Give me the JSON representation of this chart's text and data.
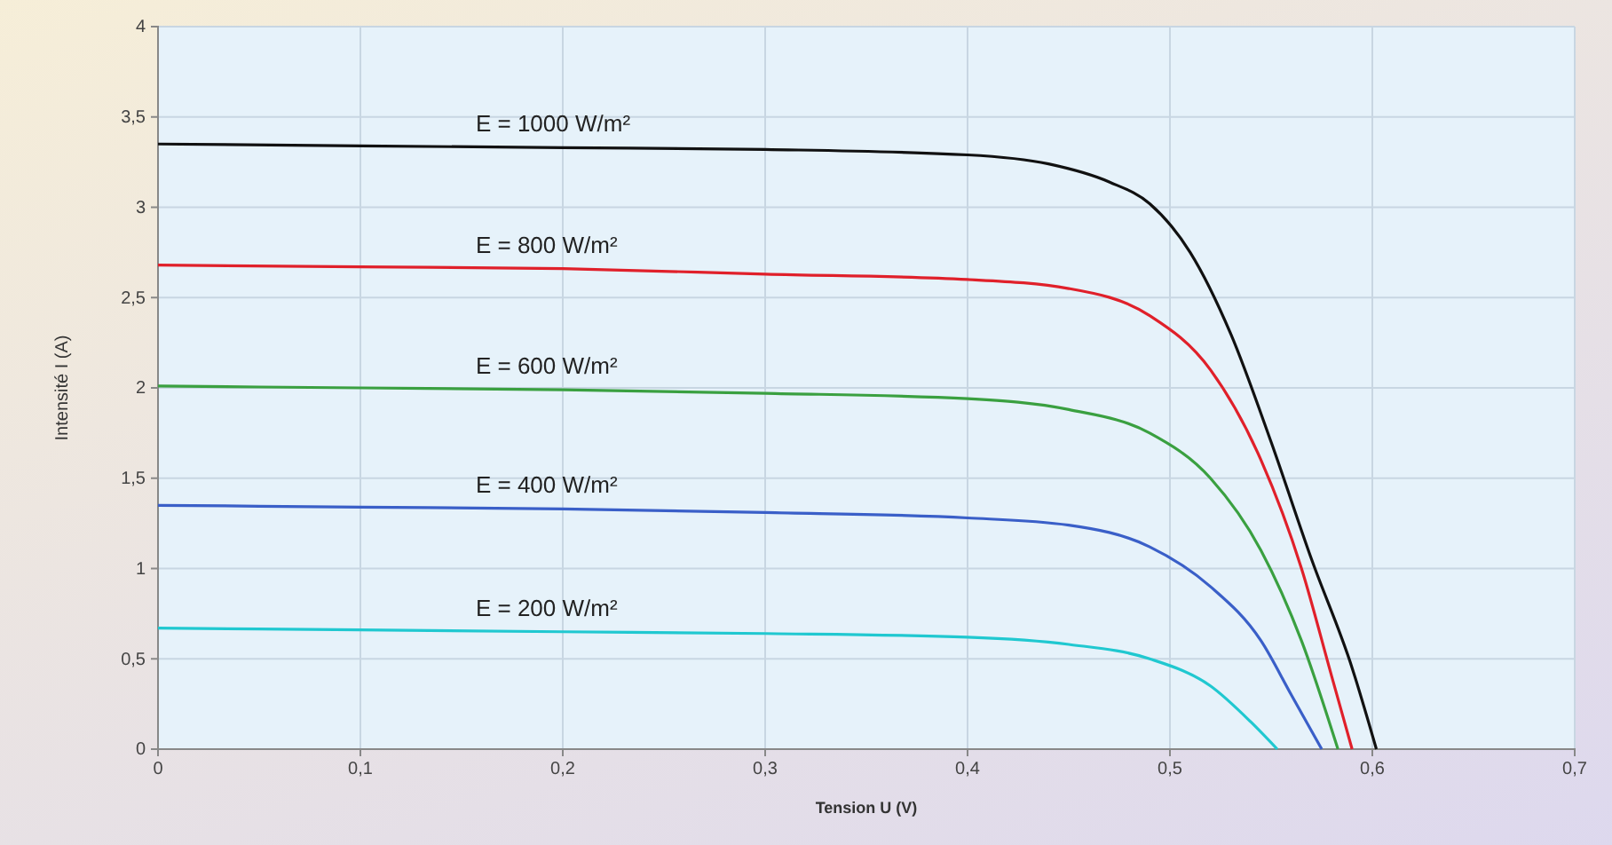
{
  "chart_data": {
    "type": "line",
    "xlabel": "Tension U (V)",
    "ylabel": "Intensité I (A)",
    "xlim": [
      0,
      0.7
    ],
    "xticks": [
      {
        "value": 0,
        "label": "0"
      },
      {
        "value": 0.1,
        "label": "0,1"
      },
      {
        "value": 0.2,
        "label": "0,2"
      },
      {
        "value": 0.3,
        "label": "0,3"
      },
      {
        "value": 0.4,
        "label": "0,4"
      },
      {
        "value": 0.5,
        "label": "0,5"
      },
      {
        "value": 0.6,
        "label": "0,6"
      },
      {
        "value": 0.7,
        "label": "0,7"
      }
    ],
    "ylim": [
      0,
      4
    ],
    "yticks": [
      0,
      {
        "value": 0.5,
        "label": "0,5"
      },
      1,
      {
        "value": 1.5,
        "label": "1,5"
      },
      2,
      {
        "value": 2.5,
        "label": "2,5"
      },
      3,
      {
        "value": 3.5,
        "label": "3,5"
      },
      4
    ],
    "grid": true,
    "legend": false,
    "marker": "none",
    "line_style": "solid",
    "series": [
      {
        "name": "E = 1000 W/m²",
        "color": "#111111",
        "x": [
          0,
          0.1,
          0.2,
          0.3,
          0.4,
          0.44,
          0.47,
          0.49,
          0.51,
          0.53,
          0.55,
          0.57,
          0.59,
          0.602
        ],
        "values": [
          3.35,
          3.34,
          3.33,
          3.32,
          3.29,
          3.24,
          3.14,
          3.02,
          2.75,
          2.3,
          1.7,
          1.05,
          0.45,
          0
        ]
      },
      {
        "name": "E = 800 W/m²",
        "color": "#e0202a",
        "x": [
          0,
          0.1,
          0.2,
          0.3,
          0.4,
          0.45,
          0.49,
          0.52,
          0.545,
          0.565,
          0.58,
          0.59
        ],
        "values": [
          2.68,
          2.67,
          2.66,
          2.63,
          2.6,
          2.55,
          2.4,
          2.1,
          1.6,
          1.0,
          0.4,
          0
        ]
      },
      {
        "name": "E = 600 W/m²",
        "color": "#3aa040",
        "x": [
          0,
          0.1,
          0.2,
          0.3,
          0.4,
          0.45,
          0.49,
          0.52,
          0.545,
          0.565,
          0.583
        ],
        "values": [
          2.01,
          2.0,
          1.99,
          1.97,
          1.94,
          1.88,
          1.75,
          1.5,
          1.1,
          0.6,
          0
        ]
      },
      {
        "name": "E = 400 W/m²",
        "color": "#3a5fc8",
        "x": [
          0,
          0.1,
          0.2,
          0.3,
          0.4,
          0.45,
          0.49,
          0.52,
          0.545,
          0.56,
          0.575
        ],
        "values": [
          1.35,
          1.34,
          1.33,
          1.31,
          1.28,
          1.24,
          1.12,
          0.9,
          0.6,
          0.3,
          0
        ]
      },
      {
        "name": "E = 200 W/m²",
        "color": "#20c8d0",
        "x": [
          0,
          0.1,
          0.2,
          0.3,
          0.4,
          0.45,
          0.49,
          0.52,
          0.54,
          0.553
        ],
        "values": [
          0.67,
          0.66,
          0.65,
          0.64,
          0.62,
          0.58,
          0.5,
          0.35,
          0.15,
          0
        ]
      }
    ]
  }
}
